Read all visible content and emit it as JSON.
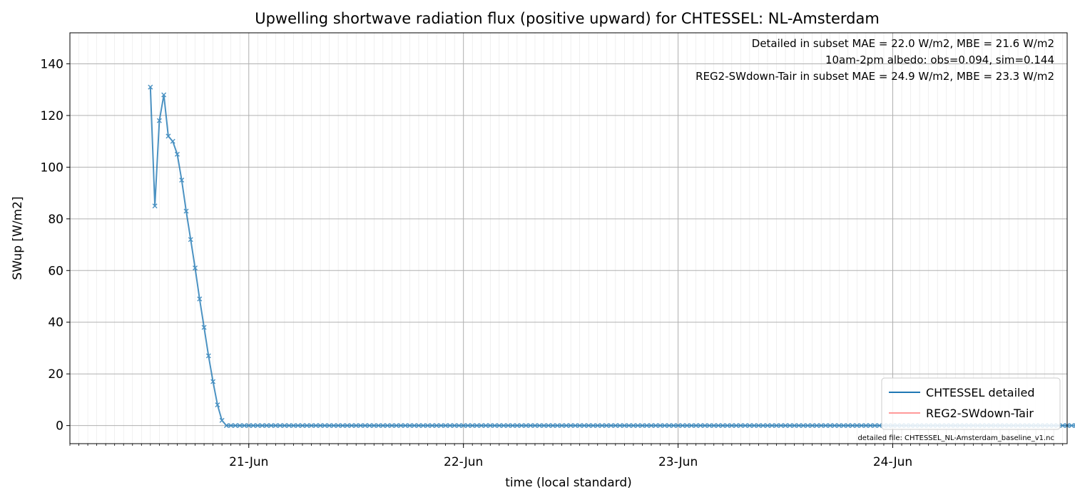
{
  "chart_data": {
    "type": "line",
    "title": "Upwelling shortwave radiation flux (positive upward) for CHTESSEL: NL-Amsterdam",
    "xlabel": "time (local standard)",
    "ylabel": "SWup [W/m2]",
    "xlim": [
      "2014-06-20T04:00",
      "2014-06-24T19:30"
    ],
    "ylim": [
      -7,
      152
    ],
    "y_ticks": [
      0,
      20,
      40,
      60,
      80,
      100,
      120,
      140
    ],
    "x_ticks": [
      {
        "t": "2014-06-21T00:00",
        "label": "21-Jun"
      },
      {
        "t": "2014-06-22T00:00",
        "label": "22-Jun"
      },
      {
        "t": "2014-06-23T00:00",
        "label": "23-Jun"
      },
      {
        "t": "2014-06-24T00:00",
        "label": "24-Jun"
      }
    ],
    "x_interval_hours": 0.5,
    "grid": true,
    "legend_position": "lower right",
    "annotations": [
      {
        "text": "Detailed in subset MAE = 22.0 W/m2, MBE = 21.6 W/m2",
        "color": "#1f77b4"
      },
      {
        "text": "10am-2pm albedo: obs=0.094, sim=0.144",
        "color": "#000000"
      },
      {
        "text": "REG2-SWdown-Tair in subset MAE = 24.9 W/m2, MBE = 23.3 W/m2",
        "color": "#ff0000"
      }
    ],
    "footnote": "detailed file: CHTESSEL_NL-Amsterdam_baseline_v1.nc",
    "series": [
      {
        "name": "CHTESSEL detailed",
        "color": "#1f77b4",
        "marker": "x",
        "start": "2014-06-20T13:00",
        "values": [
          131,
          85,
          118,
          128,
          112,
          110,
          105,
          95,
          83,
          72,
          61,
          49,
          38,
          27,
          17,
          8,
          2,
          0,
          0,
          0,
          0,
          0,
          0,
          0,
          0,
          0,
          0,
          0,
          0,
          0,
          0,
          0,
          0,
          0,
          0,
          0,
          0,
          0,
          0,
          0,
          0,
          0,
          0,
          0,
          0,
          0,
          0,
          0,
          0,
          0,
          0,
          0,
          0,
          0,
          0,
          0,
          0,
          0,
          0,
          0,
          0,
          0,
          0,
          0,
          0,
          0,
          0,
          0,
          0,
          0,
          0,
          0,
          0,
          0,
          0,
          0,
          0,
          0,
          0,
          0,
          0,
          0,
          0,
          0,
          0,
          0,
          0,
          0,
          0,
          0,
          0,
          0,
          0,
          0,
          0,
          0,
          0,
          0,
          0,
          0,
          0,
          0,
          0,
          0,
          0,
          0,
          0,
          0,
          0,
          0,
          0,
          0,
          0,
          0,
          0,
          0,
          0,
          0,
          0,
          0,
          0,
          0,
          0,
          0,
          0,
          0,
          0,
          0,
          0,
          0,
          0,
          0,
          0,
          0,
          0,
          0,
          0,
          0,
          0,
          0,
          0,
          0,
          0,
          0,
          0,
          0,
          0,
          0,
          0,
          0,
          0,
          0,
          0,
          0,
          0,
          0,
          0,
          0,
          0,
          0,
          0,
          0,
          0,
          0,
          0,
          0,
          0,
          0,
          0,
          0,
          0,
          0,
          0,
          0,
          0,
          0,
          0,
          0,
          0,
          0,
          0,
          0,
          0,
          0,
          0,
          0,
          0,
          0,
          0,
          0,
          0,
          0,
          0,
          0,
          0,
          0,
          0,
          0,
          0,
          0,
          0,
          0,
          0,
          0,
          0,
          0,
          0,
          0,
          0,
          0,
          0,
          0,
          0,
          0,
          0,
          0,
          0,
          0,
          0,
          0,
          0,
          0,
          0,
          0,
          0,
          0,
          0,
          0,
          0,
          0,
          0,
          0,
          0
        ]
      },
      {
        "name": "REG2-SWdown-Tair",
        "color": "#ff9999",
        "marker": "x",
        "start": "2014-06-20T13:00",
        "values": []
      },
      {
        "name": "",
        "color": "#000000",
        "marker": "x",
        "start": "2014-06-20T13:00",
        "values": []
      }
    ]
  }
}
